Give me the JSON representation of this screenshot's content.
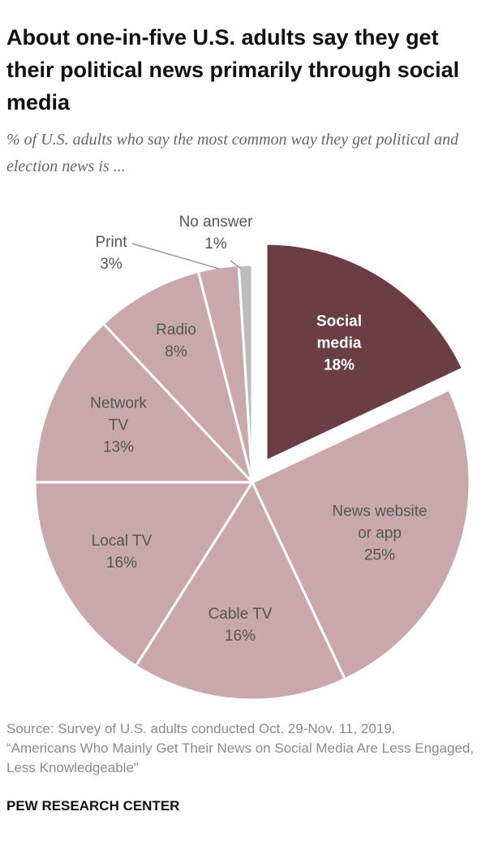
{
  "chart_data": {
    "type": "pie",
    "title": "About one-in-five U.S. adults say they get their political news primarily through social media",
    "subtitle": "% of U.S. adults who say the most common way they get political and election news is ...",
    "categories": [
      "Social media",
      "News website or app",
      "Cable TV",
      "Local TV",
      "Network TV",
      "Radio",
      "Print",
      "No answer"
    ],
    "values": [
      18,
      25,
      16,
      16,
      13,
      8,
      3,
      1
    ],
    "value_labels": [
      "18%",
      "25%",
      "16%",
      "16%",
      "13%",
      "8%",
      "3%",
      "1%"
    ],
    "colors": [
      "#6b3e45",
      "#c9a8ad",
      "#c9a8ad",
      "#c9a8ad",
      "#c9a8ad",
      "#c9a8ad",
      "#c9a8ad",
      "#bdbdbd"
    ],
    "source": "Source: Survey of U.S. adults conducted Oct. 29-Nov. 11, 2019.",
    "note": "“Americans Who Mainly Get Their News on Social Media Are Less Engaged, Less Knowledgeable”",
    "logo": "PEW RESEARCH CENTER"
  }
}
